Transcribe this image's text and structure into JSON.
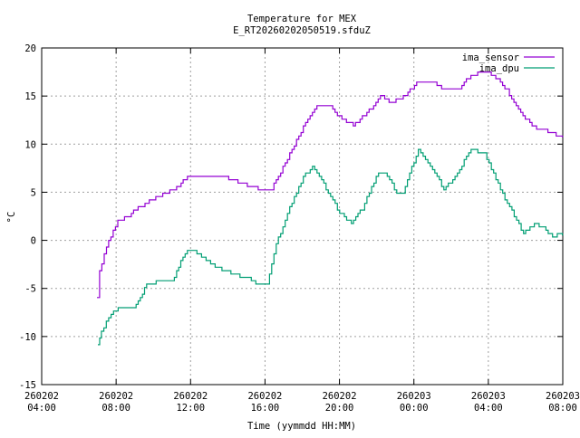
{
  "chart_data": {
    "type": "line",
    "title": "Temperature for MEX",
    "subtitle": "E_RT20260202050519.sfduZ",
    "xlabel": "Time (yymmdd HH:MM)",
    "ylabel": "°C",
    "x_units": "hours since 260202 04:00",
    "xlim": [
      0,
      28
    ],
    "ylim": [
      -15,
      20
    ],
    "grid": true,
    "legend_position": "top-right",
    "yticks": [
      -15,
      -10,
      -5,
      0,
      5,
      10,
      15,
      20
    ],
    "xticks": [
      {
        "x": 0,
        "date": "260202",
        "time": "04:00"
      },
      {
        "x": 4,
        "date": "260202",
        "time": "08:00"
      },
      {
        "x": 8,
        "date": "260202",
        "time": "12:00"
      },
      {
        "x": 12,
        "date": "260202",
        "time": "16:00"
      },
      {
        "x": 16,
        "date": "260202",
        "time": "20:00"
      },
      {
        "x": 20,
        "date": "260203",
        "time": "00:00"
      },
      {
        "x": 24,
        "date": "260203",
        "time": "04:00"
      },
      {
        "x": 28,
        "date": "260203",
        "time": "08:00"
      }
    ],
    "series": [
      {
        "name": "ima_sensor",
        "color": "#9400d3",
        "x": [
          2.97,
          3.11,
          3.36,
          3.6,
          3.84,
          4.09,
          4.57,
          5.06,
          5.55,
          6.13,
          7.01,
          7.49,
          7.83,
          9.93,
          10.17,
          11.05,
          11.87,
          12.36,
          12.6,
          13.33,
          14.06,
          14.79,
          15.52,
          16.01,
          16.74,
          17.47,
          18.2,
          18.78,
          19.56,
          20.15,
          21.12,
          21.61,
          22.34,
          22.82,
          23.55,
          24.28,
          25.01,
          25.74,
          26.47,
          27.2,
          27.98
        ],
        "y": [
          -6.1,
          -3.2,
          -1.4,
          0,
          1,
          2,
          2.4,
          3.2,
          3.8,
          4.5,
          5.2,
          5.9,
          6.6,
          6.6,
          6.3,
          5.7,
          5.3,
          5.4,
          6.2,
          9,
          11.8,
          13.9,
          13.9,
          12.8,
          12,
          13.2,
          15,
          14.4,
          15.1,
          16.3,
          16.3,
          15.6,
          15.6,
          16.7,
          17.6,
          17.2,
          15.6,
          13.2,
          11.8,
          11.3,
          10.7
        ]
      },
      {
        "name": "ima_dpu",
        "color": "#009e73",
        "x": [
          3.02,
          3.21,
          3.6,
          3.99,
          4.96,
          5.3,
          5.64,
          6.28,
          7.01,
          7.25,
          7.59,
          7.83,
          8.22,
          8.71,
          9.44,
          10.17,
          11.14,
          11.63,
          12.12,
          12.6,
          13.33,
          14.06,
          14.55,
          15.04,
          16.01,
          16.64,
          17.23,
          18.1,
          18.44,
          19.08,
          19.42,
          20.24,
          20.88,
          21.61,
          22.09,
          23.07,
          23.8,
          24.77,
          25.89,
          26.47,
          26.86,
          27.45,
          27.83,
          27.98
        ],
        "y": [
          -10.8,
          -9.4,
          -8,
          -7.2,
          -7,
          -6,
          -4.6,
          -4.3,
          -4.3,
          -3.2,
          -1.8,
          -1.2,
          -1.2,
          -1.8,
          -2.8,
          -3.4,
          -4,
          -4.7,
          -4.4,
          -0.4,
          3.4,
          6.6,
          7.6,
          6.2,
          2.9,
          1.7,
          3.3,
          7.1,
          7.1,
          5,
          5,
          9.5,
          7.6,
          5.4,
          6.2,
          9.5,
          9,
          4.8,
          0.7,
          1.7,
          1.5,
          0.3,
          0.7,
          0.5
        ]
      }
    ]
  }
}
